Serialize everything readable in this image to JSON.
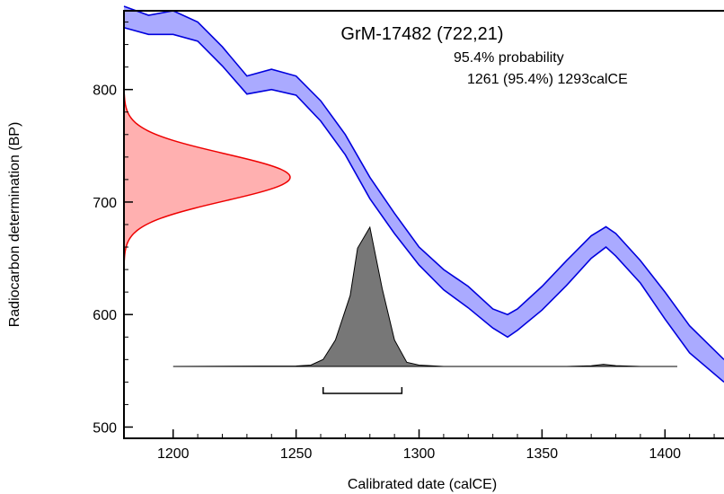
{
  "chart_data": {
    "type": "area",
    "title": "GrM-17482 (722,21)",
    "annotation_lines": [
      "95.4% probability",
      "1261 (95.4%) 1293calCE"
    ],
    "xlabel": "Calibrated date (calCE)",
    "ylabel": "Radiocarbon determination (BP)",
    "xlim": [
      1180,
      1424
    ],
    "ylim": [
      490,
      870
    ],
    "x_ticks": [
      1200,
      1250,
      1300,
      1350,
      1400
    ],
    "y_ticks": [
      500,
      600,
      700,
      800
    ],
    "colors": {
      "calibration_fill": "#aaaaff",
      "calibration_line": "#0000dd",
      "measurement_fill": "#ffb0b0",
      "measurement_line": "#ee0000",
      "posterior_fill": "#777777",
      "axis": "#000000"
    },
    "calibration_curve": {
      "x": [
        1180,
        1190,
        1200,
        1210,
        1220,
        1230,
        1240,
        1250,
        1260,
        1270,
        1280,
        1290,
        1300,
        1310,
        1320,
        1330,
        1336,
        1340,
        1350,
        1360,
        1370,
        1376,
        1380,
        1390,
        1400,
        1410,
        1424
      ],
      "upper": [
        874,
        866,
        870,
        860,
        838,
        812,
        818,
        812,
        790,
        760,
        722,
        690,
        660,
        640,
        625,
        605,
        600,
        605,
        625,
        648,
        670,
        678,
        672,
        648,
        620,
        590,
        560
      ],
      "lower": [
        855,
        849,
        849,
        843,
        821,
        796,
        800,
        795,
        772,
        742,
        703,
        672,
        644,
        622,
        606,
        588,
        580,
        586,
        604,
        626,
        650,
        660,
        652,
        628,
        596,
        566,
        540
      ]
    },
    "measurement": {
      "mean": 722,
      "sigma": 21
    },
    "posterior": {
      "x": [
        1200,
        1250,
        1256,
        1261,
        1266,
        1272,
        1275,
        1280,
        1285,
        1290,
        1295,
        1300,
        1310,
        1360,
        1370,
        1375,
        1380,
        1390,
        1405
      ],
      "density": [
        0,
        0.003,
        0.01,
        0.05,
        0.19,
        0.51,
        0.85,
        1.0,
        0.56,
        0.19,
        0.03,
        0.01,
        0.0,
        0.0,
        0.005,
        0.015,
        0.006,
        0.0,
        0.0
      ]
    },
    "range_95": [
      1261,
      1293
    ]
  }
}
